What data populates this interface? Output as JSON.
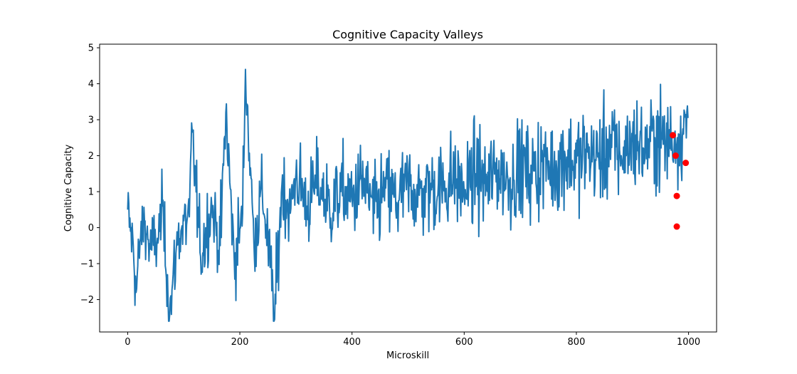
{
  "chart_data": {
    "type": "line",
    "title": "Cognitive Capacity Valleys",
    "xlabel": "Microskill",
    "ylabel": "Cognitive Capacity",
    "xlim": [
      -50,
      1050
    ],
    "ylim": [
      -2.9,
      5.1
    ],
    "xticks": [
      0,
      200,
      400,
      600,
      800,
      1000
    ],
    "xtick_labels": [
      "0",
      "200",
      "400",
      "600",
      "800",
      "1000"
    ],
    "yticks": [
      -2,
      -1,
      0,
      1,
      2,
      3,
      4,
      5
    ],
    "ytick_labels": [
      "−2",
      "−1",
      "0",
      "1",
      "2",
      "3",
      "4",
      "5"
    ],
    "grid": false,
    "colors": {
      "line": "#1f77b4",
      "markers": "#ff0000"
    },
    "series": [
      {
        "type": "line",
        "anchors": [
          [
            0,
            0.5
          ],
          [
            5,
            -0.1
          ],
          [
            10,
            -0.5
          ],
          [
            15,
            -1.8
          ],
          [
            22,
            -0.4
          ],
          [
            30,
            0.2
          ],
          [
            40,
            -0.6
          ],
          [
            55,
            -0.3
          ],
          [
            62,
            0.6
          ],
          [
            75,
            -2.4
          ],
          [
            90,
            -0.2
          ],
          [
            110,
            0.3
          ],
          [
            115,
            2.7
          ],
          [
            130,
            -0.8
          ],
          [
            150,
            0.6
          ],
          [
            165,
            -0.5
          ],
          [
            175,
            3.2
          ],
          [
            190,
            -0.9
          ],
          [
            205,
            0.4
          ],
          [
            210,
            4.4
          ],
          [
            225,
            -0.4
          ],
          [
            240,
            1.0
          ],
          [
            250,
            -0.3
          ],
          [
            262,
            -2.55
          ],
          [
            275,
            1.2
          ],
          [
            290,
            0.4
          ],
          [
            300,
            1.5
          ],
          [
            320,
            0.6
          ],
          [
            340,
            1.3
          ],
          [
            360,
            0.5
          ],
          [
            380,
            1.0
          ],
          [
            400,
            0.8
          ],
          [
            420,
            1.3
          ],
          [
            440,
            0.4
          ],
          [
            460,
            1.1
          ],
          [
            480,
            0.7
          ],
          [
            500,
            1.2
          ],
          [
            520,
            0.9
          ],
          [
            540,
            1.1
          ],
          [
            560,
            1.1
          ],
          [
            580,
            1.4
          ],
          [
            600,
            1.0
          ],
          [
            620,
            1.5
          ],
          [
            640,
            1.2
          ],
          [
            660,
            1.6
          ],
          [
            680,
            1.3
          ],
          [
            700,
            1.7
          ],
          [
            720,
            1.5
          ],
          [
            740,
            1.8
          ],
          [
            760,
            1.6
          ],
          [
            780,
            2.0
          ],
          [
            800,
            1.8
          ],
          [
            820,
            2.1
          ],
          [
            840,
            1.9
          ],
          [
            860,
            2.3
          ],
          [
            880,
            2.0
          ],
          [
            900,
            2.4
          ],
          [
            920,
            2.2
          ],
          [
            940,
            2.5
          ],
          [
            960,
            2.4
          ],
          [
            980,
            2.5
          ],
          [
            1000,
            2.9
          ]
        ],
        "spread": [
          [
            0,
            0.9
          ],
          [
            200,
            1.1
          ],
          [
            400,
            1.2
          ],
          [
            600,
            1.3
          ],
          [
            800,
            1.4
          ],
          [
            1000,
            1.3
          ]
        ],
        "n_points": 1000
      }
    ],
    "markers": [
      {
        "x": 972,
        "y": 2.57
      },
      {
        "x": 977,
        "y": 2.0
      },
      {
        "x": 979,
        "y": 0.88
      },
      {
        "x": 979,
        "y": 0.03
      },
      {
        "x": 995,
        "y": 1.8
      }
    ]
  }
}
